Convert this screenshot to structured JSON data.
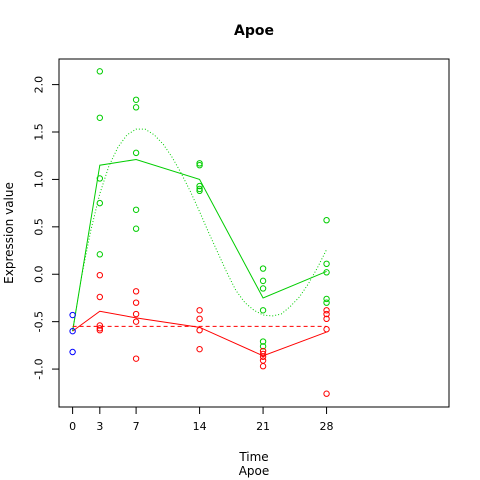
{
  "chart_data": {
    "type": "scatter",
    "title": "Apoe",
    "xlabel": "Time",
    "sublabel": "Apoe",
    "ylabel": "Expression value",
    "x_ticks": [
      0,
      3,
      7,
      14,
      21,
      28
    ],
    "y_ticks": [
      -1.0,
      -0.5,
      0.0,
      0.5,
      1.0,
      1.5,
      2.0
    ],
    "y_tick_labels": [
      "-1.0",
      "-0.5",
      "0.0",
      "0.5",
      "1.0",
      "1.5",
      "2.0"
    ],
    "xlim": [
      -1.5,
      41.5
    ],
    "ylim": [
      -1.4,
      2.27
    ],
    "grid": false,
    "legend": "none",
    "colors": {
      "baseline": "#0000ff",
      "green": "#00cd00",
      "red": "#ff0000"
    },
    "series": [
      {
        "color": "baseline",
        "points": [
          [
            0,
            -0.43
          ],
          [
            0,
            -0.6
          ],
          [
            0,
            -0.82
          ]
        ]
      },
      {
        "color": "green",
        "points": [
          [
            3,
            2.14
          ],
          [
            3,
            1.65
          ],
          [
            3,
            1.01
          ],
          [
            3,
            0.75
          ],
          [
            3,
            0.21
          ],
          [
            7,
            1.84
          ],
          [
            7,
            1.76
          ],
          [
            7,
            1.28
          ],
          [
            7,
            0.68
          ],
          [
            7,
            0.48
          ],
          [
            14,
            1.17
          ],
          [
            14,
            1.15
          ],
          [
            14,
            0.93
          ],
          [
            14,
            0.9
          ],
          [
            14,
            0.88
          ],
          [
            21,
            0.06
          ],
          [
            21,
            -0.07
          ],
          [
            21,
            -0.15
          ],
          [
            21,
            -0.38
          ],
          [
            21,
            -0.71
          ],
          [
            21,
            -0.76
          ],
          [
            28,
            0.57
          ],
          [
            28,
            0.11
          ],
          [
            28,
            0.02
          ],
          [
            28,
            -0.26
          ],
          [
            28,
            -0.3
          ]
        ]
      },
      {
        "color": "red",
        "points": [
          [
            3,
            -0.01
          ],
          [
            3,
            -0.24
          ],
          [
            3,
            -0.54
          ],
          [
            3,
            -0.57
          ],
          [
            3,
            -0.59
          ],
          [
            7,
            -0.18
          ],
          [
            7,
            -0.3
          ],
          [
            7,
            -0.42
          ],
          [
            7,
            -0.5
          ],
          [
            7,
            -0.89
          ],
          [
            14,
            -0.38
          ],
          [
            14,
            -0.47
          ],
          [
            14,
            -0.59
          ],
          [
            14,
            -0.79
          ],
          [
            21,
            -0.81
          ],
          [
            21,
            -0.84
          ],
          [
            21,
            -0.87
          ],
          [
            21,
            -0.91
          ],
          [
            21,
            -0.97
          ],
          [
            28,
            -0.38
          ],
          [
            28,
            -0.42
          ],
          [
            28,
            -0.47
          ],
          [
            28,
            -0.58
          ],
          [
            28,
            -1.26
          ]
        ]
      }
    ],
    "lines": [
      {
        "color": "green",
        "style": "solid",
        "x": [
          0,
          3,
          7,
          14,
          21,
          28
        ],
        "y": [
          -0.6,
          1.15,
          1.21,
          1.0,
          -0.25,
          0.03
        ]
      },
      {
        "color": "red",
        "style": "solid",
        "x": [
          0,
          3,
          7,
          14,
          21,
          28
        ],
        "y": [
          -0.6,
          -0.39,
          -0.46,
          -0.56,
          -0.86,
          -0.61
        ]
      },
      {
        "color": "red",
        "style": "dashed",
        "x": [
          0,
          28
        ],
        "y": [
          -0.55,
          -0.55
        ]
      },
      {
        "color": "green",
        "style": "dotted",
        "x": [
          0,
          1,
          2,
          3,
          4,
          5,
          6,
          7,
          8,
          9,
          10,
          11,
          12,
          13,
          14,
          15,
          16,
          17,
          18,
          19,
          20,
          21,
          22,
          23,
          24,
          25,
          26,
          27,
          28
        ],
        "y": [
          -0.6,
          -0.02,
          0.46,
          0.85,
          1.14,
          1.34,
          1.47,
          1.53,
          1.53,
          1.47,
          1.37,
          1.23,
          1.06,
          0.87,
          0.66,
          0.44,
          0.23,
          0.02,
          -0.17,
          -0.3,
          -0.38,
          -0.43,
          -0.44,
          -0.42,
          -0.34,
          -0.24,
          -0.1,
          0.07,
          0.26
        ]
      }
    ]
  }
}
